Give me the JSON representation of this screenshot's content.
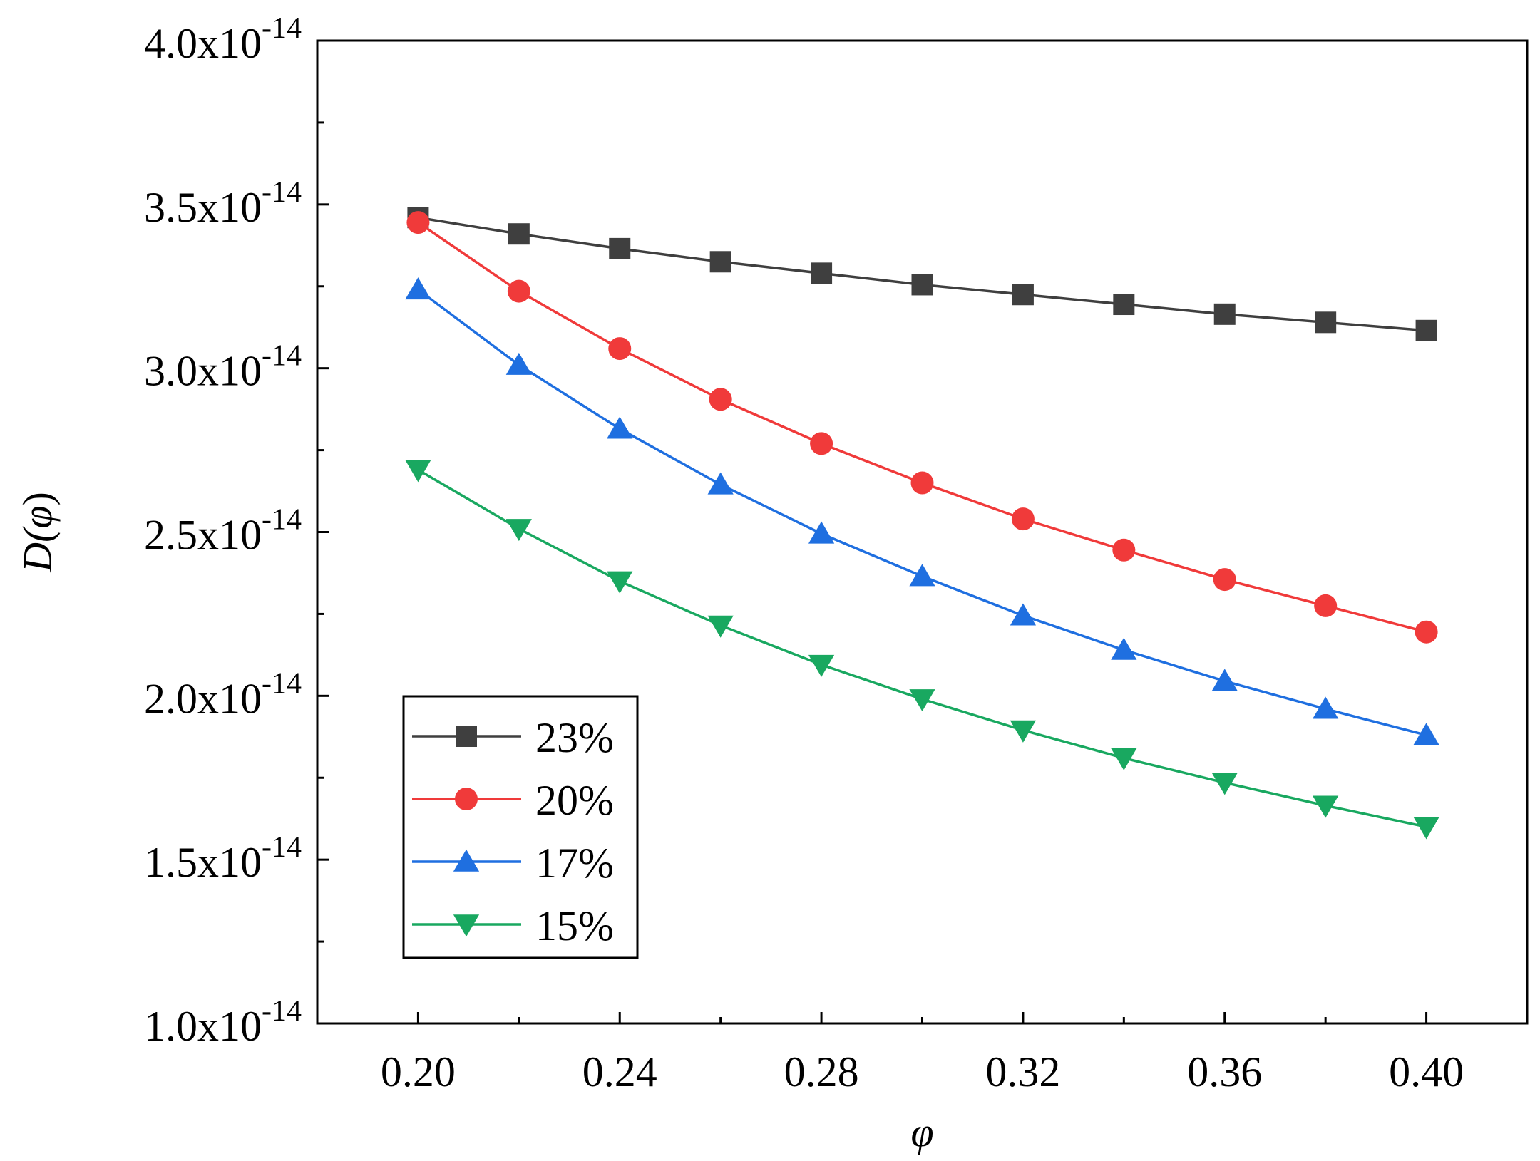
{
  "chart_data": {
    "type": "line",
    "title": "",
    "xlabel": "φ",
    "ylabel_main": "D(",
    "ylabel_var": "φ",
    "ylabel_close": ")",
    "xlim": [
      0.18,
      0.42
    ],
    "ylim": [
      1e-14,
      4e-14
    ],
    "x": [
      0.2,
      0.22,
      0.24,
      0.26,
      0.28,
      0.3,
      0.32,
      0.34,
      0.36,
      0.38,
      0.4
    ],
    "xticks": [
      {
        "value": 0.2,
        "label": "0.20"
      },
      {
        "value": 0.24,
        "label": "0.24"
      },
      {
        "value": 0.28,
        "label": "0.28"
      },
      {
        "value": 0.32,
        "label": "0.32"
      },
      {
        "value": 0.36,
        "label": "0.36"
      },
      {
        "value": 0.4,
        "label": "0.40"
      }
    ],
    "yticks": [
      {
        "value": 1e-14,
        "mantissa": "1.0x10",
        "exp": "-14"
      },
      {
        "value": 1.5e-14,
        "mantissa": "1.5x10",
        "exp": "-14"
      },
      {
        "value": 2e-14,
        "mantissa": "2.0x10",
        "exp": "-14"
      },
      {
        "value": 2.5e-14,
        "mantissa": "2.5x10",
        "exp": "-14"
      },
      {
        "value": 3e-14,
        "mantissa": "3.0x10",
        "exp": "-14"
      },
      {
        "value": 3.5e-14,
        "mantissa": "3.5x10",
        "exp": "-14"
      },
      {
        "value": 4e-14,
        "mantissa": "4.0x10",
        "exp": "-14"
      }
    ],
    "legend_position": "lower-left",
    "series": [
      {
        "name": "23%",
        "color": "#3f3f3f",
        "marker": "square",
        "values": [
          3.46e-14,
          3.41e-14,
          3.365e-14,
          3.325e-14,
          3.29e-14,
          3.255e-14,
          3.225e-14,
          3.195e-14,
          3.165e-14,
          3.14e-14,
          3.115e-14
        ]
      },
      {
        "name": "20%",
        "color": "#f03a3a",
        "marker": "circle",
        "values": [
          3.445e-14,
          3.235e-14,
          3.06e-14,
          2.905e-14,
          2.77e-14,
          2.65e-14,
          2.54e-14,
          2.445e-14,
          2.355e-14,
          2.275e-14,
          2.195e-14
        ]
      },
      {
        "name": "17%",
        "color": "#1f6fe0",
        "marker": "triangle-up",
        "values": [
          3.24e-14,
          3.01e-14,
          2.815e-14,
          2.645e-14,
          2.495e-14,
          2.365e-14,
          2.245e-14,
          2.14e-14,
          2.045e-14,
          1.96e-14,
          1.88e-14
        ]
      },
      {
        "name": "15%",
        "color": "#19a860",
        "marker": "triangle-down",
        "values": [
          2.69e-14,
          2.51e-14,
          2.35e-14,
          2.215e-14,
          2.095e-14,
          1.99e-14,
          1.895e-14,
          1.81e-14,
          1.735e-14,
          1.665e-14,
          1.6e-14
        ]
      }
    ]
  }
}
